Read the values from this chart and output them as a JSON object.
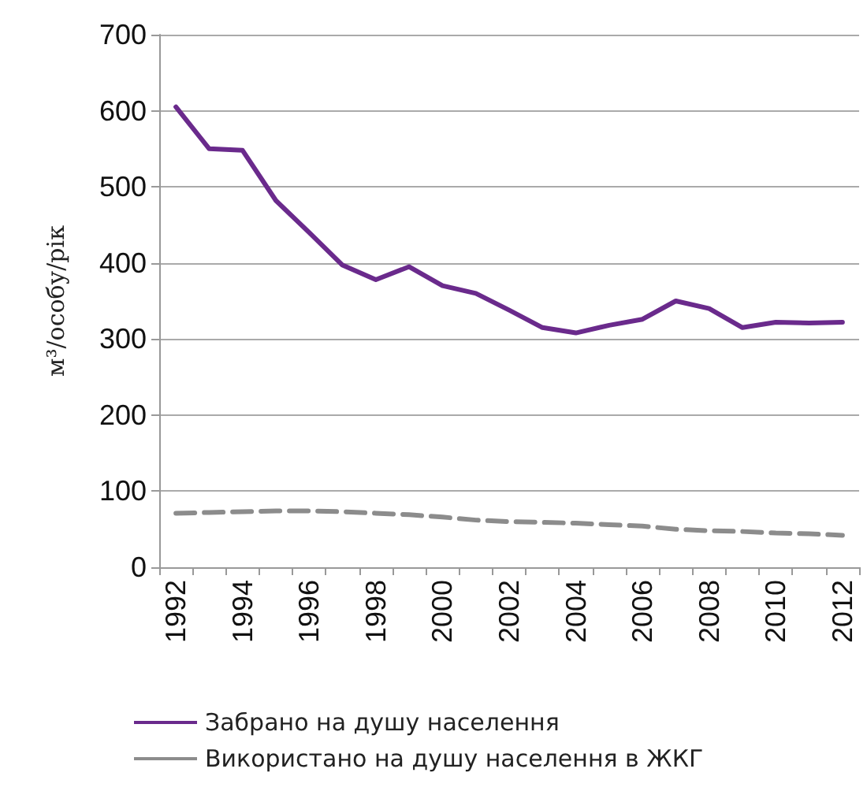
{
  "chart_data": {
    "type": "line",
    "ylabel": "м³/особу/рік",
    "categories": [
      "1992",
      null,
      "1994",
      null,
      "1996",
      null,
      "1998",
      null,
      "2000",
      null,
      "2002",
      null,
      "2004",
      null,
      "2006",
      null,
      "2008",
      null,
      "2010",
      null,
      "2012"
    ],
    "series": [
      {
        "name": "Забрано на душу населення",
        "color": "#6a2a8c",
        "line_style": "solid",
        "values": [
          605,
          550,
          548,
          482,
          440,
          397,
          378,
          395,
          370,
          360,
          338,
          315,
          308,
          318,
          326,
          350,
          340,
          315,
          322,
          321,
          322
        ]
      },
      {
        "name": "Використано на душу населення в ЖКГ",
        "color": "#8c8c8c",
        "line_style": "dashed",
        "values": [
          71,
          72,
          73,
          74,
          74,
          73,
          71,
          69,
          66,
          62,
          60,
          59,
          58,
          56,
          54,
          50,
          48,
          47,
          45,
          44,
          42
        ]
      }
    ],
    "ylim": [
      0,
      700
    ],
    "yticks": [
      0,
      100,
      200,
      300,
      400,
      500,
      600,
      700
    ],
    "grid": "y",
    "legend": "bottom",
    "marker": "none"
  }
}
